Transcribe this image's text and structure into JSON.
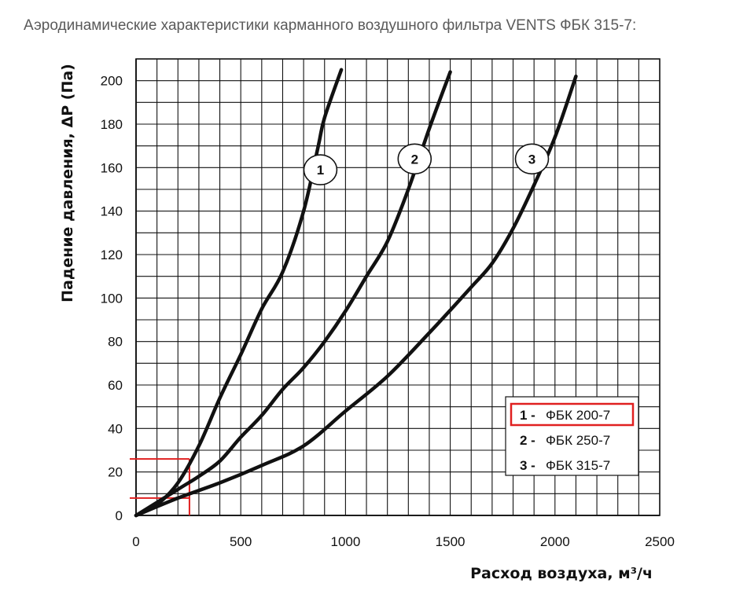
{
  "caption": "Аэродинамические характеристики карманного воздушного фильтра VENTS ФБК 315-7:",
  "chart_data": {
    "type": "line",
    "xlabel": "Расход воздуха, м³/ч",
    "ylabel": "Падение давления, ΔP (Па)",
    "xlim": [
      0,
      2500
    ],
    "ylim": [
      0,
      200
    ],
    "xticks": [
      0,
      500,
      1000,
      1500,
      2000,
      2500
    ],
    "yticks": [
      0,
      20,
      40,
      60,
      80,
      100,
      120,
      140,
      160,
      180,
      200
    ],
    "grid": true,
    "grid_step": {
      "x": 100,
      "y": 10
    },
    "series": [
      {
        "id": "1",
        "name": "ФБК 200-7",
        "points": [
          [
            0,
            0
          ],
          [
            100,
            5
          ],
          [
            200,
            15
          ],
          [
            300,
            32
          ],
          [
            400,
            54
          ],
          [
            500,
            74
          ],
          [
            600,
            95
          ],
          [
            700,
            112
          ],
          [
            800,
            140
          ],
          [
            870,
            170
          ],
          [
            900,
            183
          ],
          [
            980,
            205
          ]
        ]
      },
      {
        "id": "2",
        "name": "ФБК 250-7",
        "points": [
          [
            0,
            0
          ],
          [
            200,
            12
          ],
          [
            300,
            18
          ],
          [
            400,
            25
          ],
          [
            500,
            36
          ],
          [
            600,
            46
          ],
          [
            700,
            58
          ],
          [
            800,
            68
          ],
          [
            900,
            80
          ],
          [
            1000,
            94
          ],
          [
            1100,
            110
          ],
          [
            1200,
            126
          ],
          [
            1300,
            150
          ],
          [
            1400,
            178
          ],
          [
            1500,
            204
          ]
        ]
      },
      {
        "id": "3",
        "name": "ФБК 315-7",
        "points": [
          [
            0,
            0
          ],
          [
            200,
            8
          ],
          [
            400,
            15
          ],
          [
            600,
            23
          ],
          [
            800,
            32
          ],
          [
            1000,
            48
          ],
          [
            1200,
            64
          ],
          [
            1400,
            84
          ],
          [
            1600,
            105
          ],
          [
            1700,
            116
          ],
          [
            1800,
            132
          ],
          [
            1900,
            152
          ],
          [
            2000,
            174
          ],
          [
            2100,
            202
          ]
        ]
      }
    ],
    "curve_labels": [
      {
        "series": "1",
        "text": "1",
        "x": 880,
        "y": 159
      },
      {
        "series": "2",
        "text": "2",
        "x": 1330,
        "y": 164
      },
      {
        "series": "3",
        "text": "3",
        "x": 1890,
        "y": 164
      }
    ],
    "legend": {
      "placement": "lower-right",
      "items": [
        {
          "num": "1 -",
          "label": "ФБК 200-7",
          "highlighted": true
        },
        {
          "num": "2 -",
          "label": "ФБК 250-7",
          "highlighted": false
        },
        {
          "num": "3 -",
          "label": "ФБК 315-7",
          "highlighted": false
        }
      ]
    },
    "annotations": {
      "color": "#e02020",
      "flow_marker_x": 255,
      "pressure_markers_y": [
        26,
        8
      ]
    },
    "colors": {
      "curve": "#111111",
      "grid": "#111111",
      "highlight": "#e02020"
    }
  }
}
